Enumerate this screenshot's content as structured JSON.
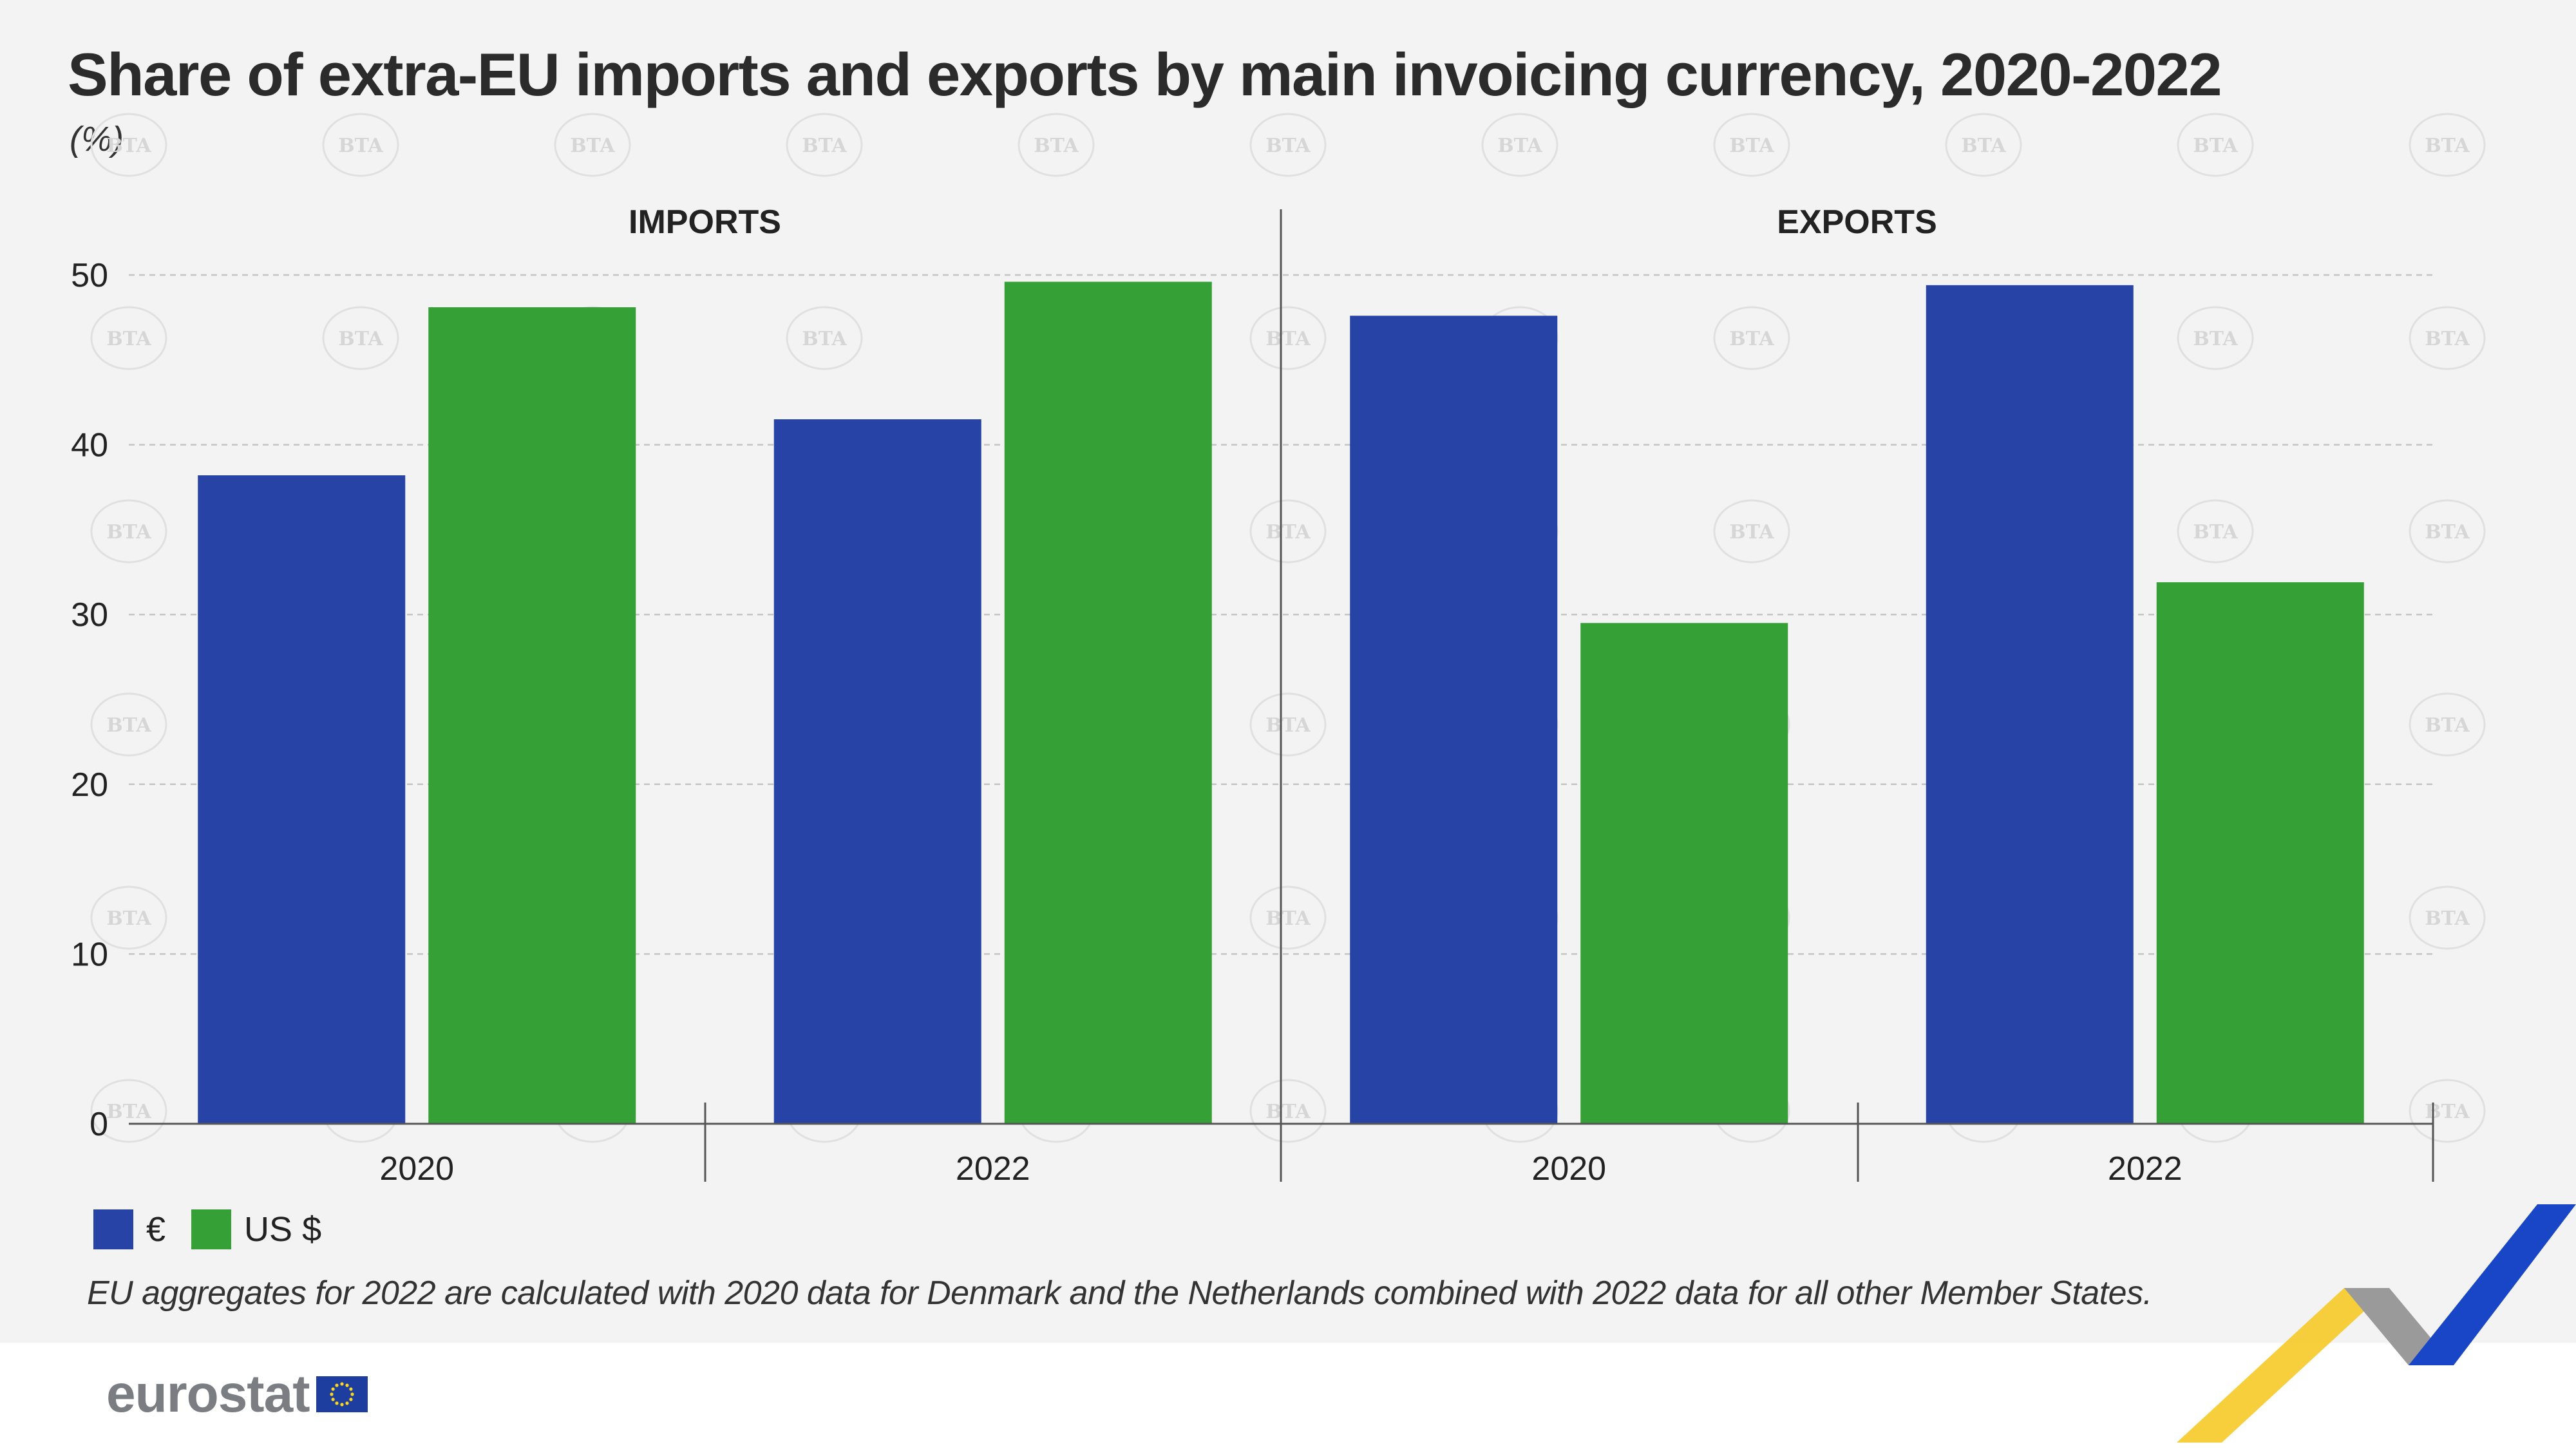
{
  "title": "Share of extra-EU imports and exports by main invoicing currency, 2020-2022",
  "unit": "(%)",
  "chart_data": {
    "type": "bar",
    "panels": [
      {
        "label": "IMPORTS",
        "categories": [
          "2020",
          "2022"
        ],
        "series": [
          {
            "name": "€",
            "values": [
              38.2,
              41.5
            ]
          },
          {
            "name": "US $",
            "values": [
              48.1,
              49.6
            ]
          }
        ]
      },
      {
        "label": "EXPORTS",
        "categories": [
          "2020",
          "2022"
        ],
        "series": [
          {
            "name": "€",
            "values": [
              47.6,
              49.4
            ]
          },
          {
            "name": "US $",
            "values": [
              29.5,
              31.9
            ]
          }
        ]
      }
    ],
    "ylim": [
      0,
      50
    ],
    "yticks": [
      0,
      10,
      20,
      30,
      40,
      50
    ],
    "grid": true,
    "legend_position": "bottom-left",
    "colors": {
      "euro": "#2743a6",
      "usd": "#34a035"
    }
  },
  "legend": [
    {
      "label": "€",
      "color": "#2743a6"
    },
    {
      "label": "US $",
      "color": "#34a035"
    }
  ],
  "footnote": "EU aggregates for 2022 are calculated with 2020 data for Denmark and the Netherlands combined with 2022 data for all other Member States.",
  "watermark": "BTA",
  "logo": {
    "text": "eurostat"
  }
}
